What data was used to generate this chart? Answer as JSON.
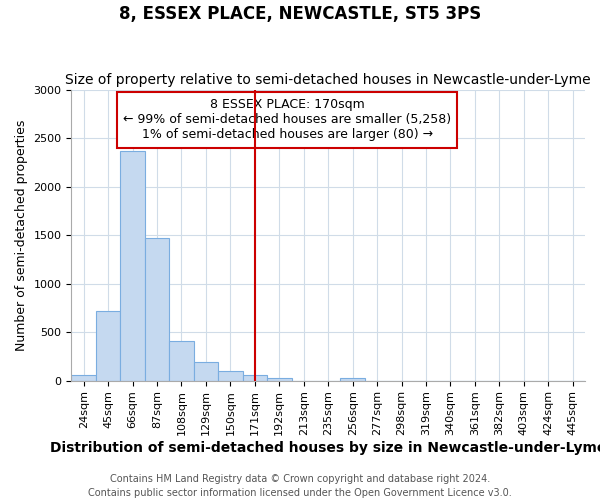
{
  "title": "8, ESSEX PLACE, NEWCASTLE, ST5 3PS",
  "subtitle": "Size of property relative to semi-detached houses in Newcastle-under-Lyme",
  "xlabel": "Distribution of semi-detached houses by size in Newcastle-under-Lyme",
  "ylabel": "Number of semi-detached properties",
  "categories": [
    "24sqm",
    "45sqm",
    "66sqm",
    "87sqm",
    "108sqm",
    "129sqm",
    "150sqm",
    "171sqm",
    "192sqm",
    "213sqm",
    "235sqm",
    "256sqm",
    "277sqm",
    "298sqm",
    "319sqm",
    "340sqm",
    "361sqm",
    "382sqm",
    "403sqm",
    "424sqm",
    "445sqm"
  ],
  "values": [
    55,
    720,
    2370,
    1470,
    410,
    190,
    95,
    55,
    30,
    0,
    0,
    30,
    0,
    0,
    0,
    0,
    0,
    0,
    0,
    0,
    0
  ],
  "bar_color": "#c5d9f0",
  "bar_edgecolor": "#7aade0",
  "vline_x": 7,
  "vline_color": "#cc0000",
  "annotation_text": "8 ESSEX PLACE: 170sqm\n← 99% of semi-detached houses are smaller (5,258)\n1% of semi-detached houses are larger (80) →",
  "annotation_box_facecolor": "#ffffff",
  "annotation_box_edgecolor": "#cc0000",
  "ylim": [
    0,
    3000
  ],
  "yticks": [
    0,
    500,
    1000,
    1500,
    2000,
    2500,
    3000
  ],
  "footer": "Contains HM Land Registry data © Crown copyright and database right 2024.\nContains public sector information licensed under the Open Government Licence v3.0.",
  "background_color": "#ffffff",
  "plot_background_color": "#ffffff",
  "title_fontsize": 12,
  "subtitle_fontsize": 10,
  "footer_fontsize": 7,
  "ylabel_fontsize": 9,
  "xlabel_fontsize": 10,
  "tick_fontsize": 8,
  "annot_fontsize": 9
}
